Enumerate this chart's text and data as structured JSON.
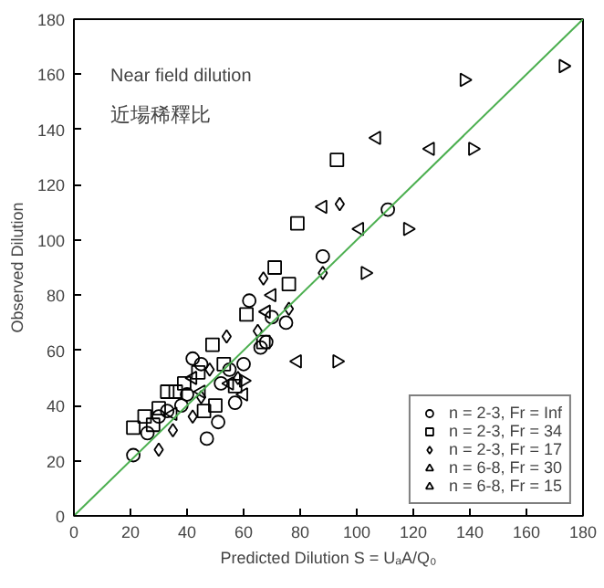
{
  "chart_data": {
    "type": "scatter",
    "xlabel": "Predicted Dilution S = UₐA/Q₀",
    "ylabel": "Observed Dilution",
    "annotations": [
      "Near field dilution",
      "近場稀釋比"
    ],
    "xlim": [
      0,
      180
    ],
    "ylim": [
      0,
      180
    ],
    "xticks": [
      0,
      20,
      40,
      60,
      80,
      100,
      120,
      140,
      160,
      180
    ],
    "yticks": [
      0,
      20,
      40,
      60,
      80,
      100,
      120,
      140,
      160,
      180
    ],
    "grid": false,
    "legend": "bottom right",
    "series": [
      {
        "name": "n = 2-3, Fr = Inf",
        "color": "#000000",
        "marker": "circle",
        "x": [
          21,
          26,
          30,
          33,
          38,
          40,
          42,
          45,
          47,
          51,
          52,
          55,
          57,
          60,
          62,
          66,
          68,
          70,
          75,
          88,
          111
        ],
        "values": [
          22,
          30,
          36,
          38,
          40,
          44,
          57,
          55,
          28,
          34,
          48,
          53,
          41,
          55,
          78,
          61,
          63,
          72,
          70,
          94,
          111
        ]
      },
      {
        "name": "n = 2-3, Fr = 34",
        "color": "#000000",
        "marker": "square",
        "x": [
          21,
          25,
          28,
          30,
          33,
          36,
          39,
          44,
          46,
          50,
          49,
          53,
          57,
          61,
          67,
          71,
          76,
          79,
          93
        ],
        "values": [
          32,
          36,
          33,
          39,
          45,
          45,
          48,
          52,
          38,
          40,
          62,
          55,
          47,
          73,
          63,
          90,
          84,
          106,
          129
        ]
      },
      {
        "name": "n = 2-3, Fr = 17",
        "color": "#000000",
        "marker": "diamond",
        "x": [
          30,
          35,
          42,
          45,
          48,
          54,
          58,
          65,
          67,
          76,
          88,
          94
        ],
        "values": [
          24,
          31,
          36,
          43,
          53,
          65,
          50,
          67,
          86,
          75,
          88,
          113
        ]
      },
      {
        "name": "n = 6-8, Fr = 30",
        "color": "#000000",
        "marker": "triangle_left",
        "x": [
          35,
          42,
          45,
          55,
          60,
          68,
          70,
          79,
          88,
          101,
          107,
          126
        ],
        "values": [
          37,
          50,
          45,
          48,
          44,
          74,
          80,
          56,
          112,
          104,
          137,
          133
        ]
      },
      {
        "name": "n = 6-8, Fr = 15",
        "color": "#000000",
        "marker": "triangle_right",
        "x": [
          60,
          93,
          103,
          118,
          138,
          141,
          173
        ],
        "values": [
          49,
          56,
          88,
          104,
          158,
          133,
          163
        ]
      },
      {
        "type": "line",
        "color": "#4caf50",
        "x": [
          0,
          180
        ],
        "values": [
          0,
          180
        ]
      }
    ]
  }
}
